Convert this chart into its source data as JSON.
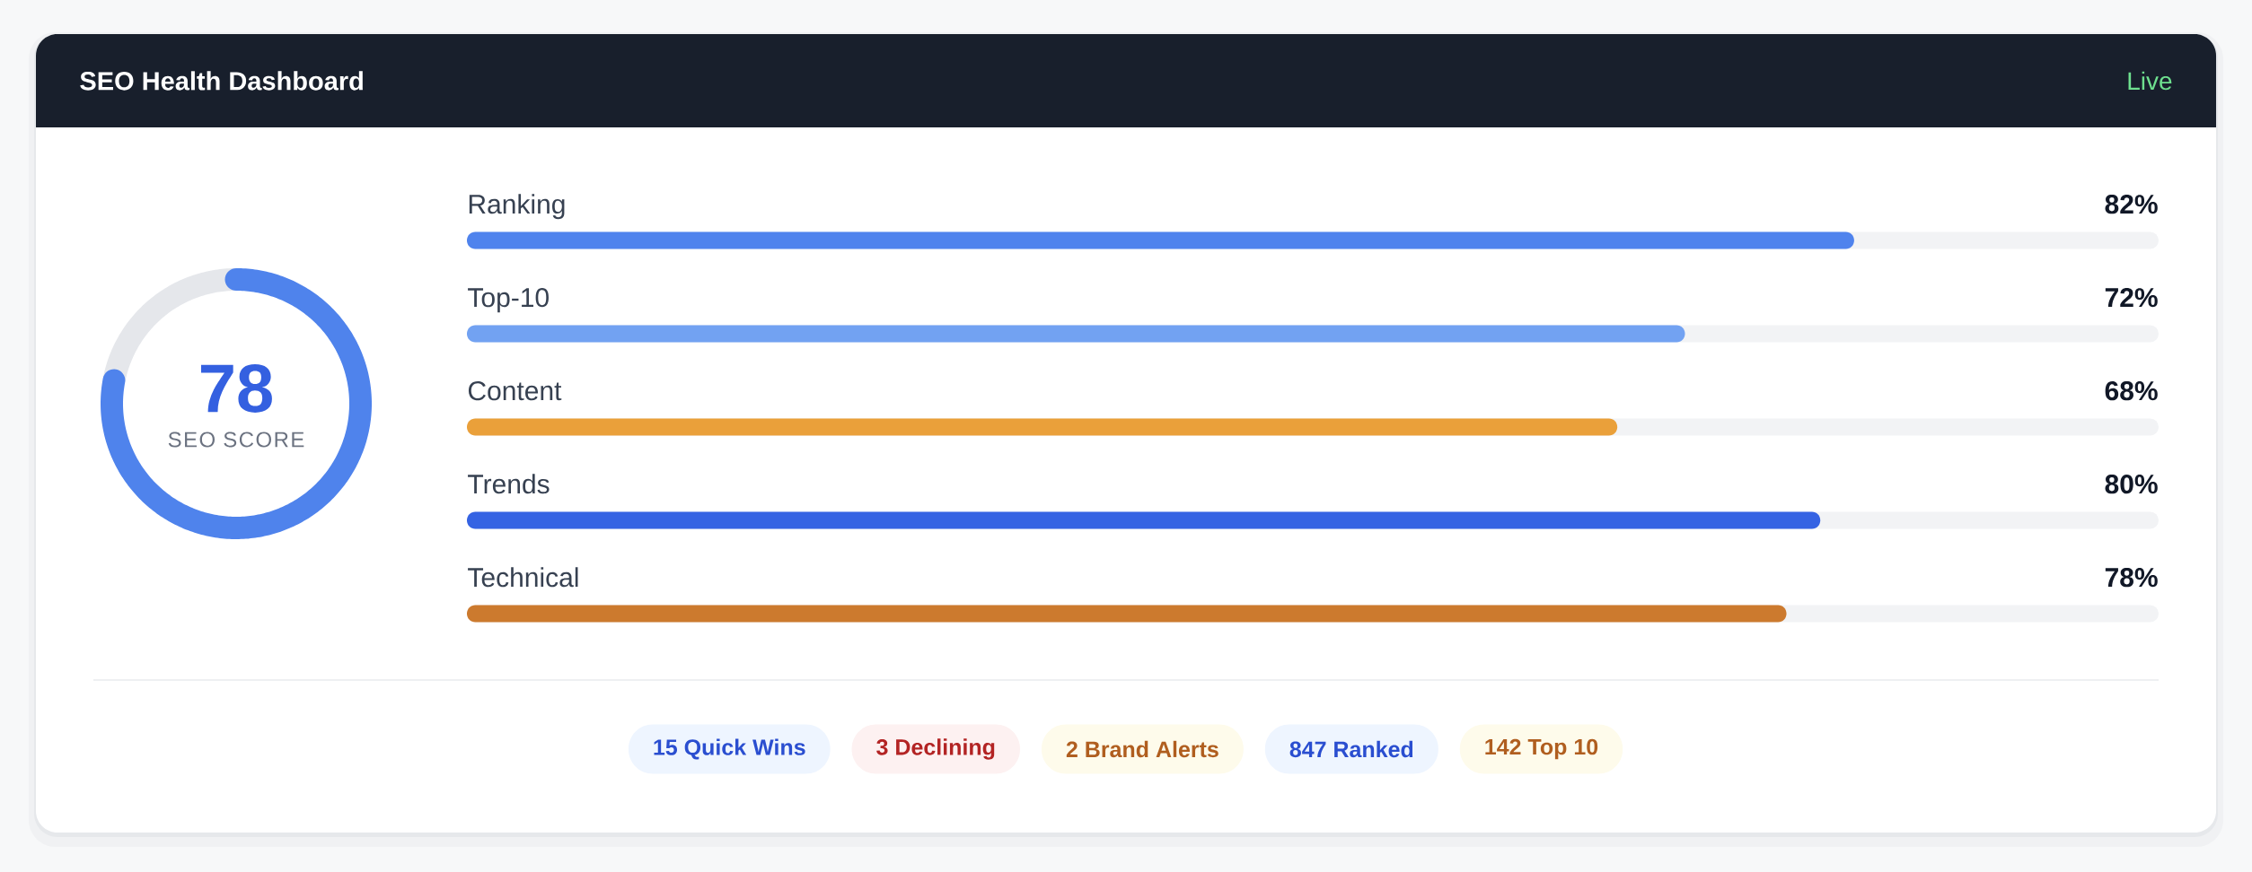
{
  "chart_data": [
    {
      "type": "other",
      "title": "SEO Health Dashboard",
      "annotations": [
        "Live"
      ]
    },
    {
      "type": "donut",
      "categories": [
        null,
        null
      ],
      "values": [
        78,
        22
      ],
      "colors": [
        "#4f83ec",
        "#e5e7eb"
      ],
      "value_labels": [
        "78",
        null
      ],
      "annotations": [
        "SEO SCORE"
      ]
    },
    {
      "type": "bar",
      "orientation": "horizontal",
      "categories": [
        "Ranking",
        "Top-10",
        "Content",
        "Trends",
        "Technical"
      ],
      "values": [
        82,
        72,
        68,
        80,
        78
      ],
      "colors": [
        "#4f83ed",
        "#72a2f2",
        "#eaa03a",
        "#3563e3",
        "#cc7a2e"
      ],
      "xlim": [
        0,
        100
      ],
      "value_labels": [
        "82%",
        "72%",
        "68%",
        "80%",
        "78%"
      ],
      "tick_labels": false
    },
    {
      "type": "other",
      "annotations": [
        "15 Quick Wins",
        "3 Declining",
        "2 Brand Alerts",
        "847 Ranked",
        "142 Top 10"
      ]
    }
  ]
}
